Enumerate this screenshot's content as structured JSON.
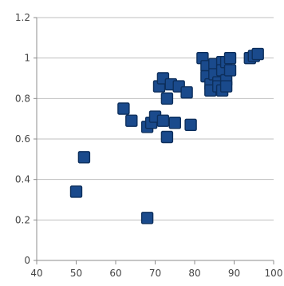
{
  "chart_data": {
    "type": "scatter",
    "title": "",
    "xlabel": "",
    "ylabel": "",
    "xlim": [
      40,
      100
    ],
    "ylim": [
      0,
      1.2
    ],
    "x_ticks": [
      "40",
      "50",
      "60",
      "70",
      "80",
      "90",
      "100"
    ],
    "y_ticks": [
      "0",
      "0.2",
      "0.4",
      "0.6",
      "0.8",
      "1",
      "1.2"
    ],
    "grid": {
      "horizontal": true,
      "vertical": false
    },
    "legend": "none",
    "marker_color": "#1a4a8c",
    "marker_shape": "square",
    "points": [
      [
        50,
        0.34
      ],
      [
        52,
        0.51
      ],
      [
        62,
        0.75
      ],
      [
        64,
        0.69
      ],
      [
        68,
        0.21
      ],
      [
        68,
        0.66
      ],
      [
        69,
        0.68
      ],
      [
        70,
        0.71
      ],
      [
        71,
        0.86
      ],
      [
        72,
        0.9
      ],
      [
        72,
        0.69
      ],
      [
        73,
        0.61
      ],
      [
        73,
        0.8
      ],
      [
        74,
        0.87
      ],
      [
        75,
        0.68
      ],
      [
        76,
        0.86
      ],
      [
        78,
        0.83
      ],
      [
        79,
        0.67
      ],
      [
        82,
        1.0
      ],
      [
        83,
        0.96
      ],
      [
        83,
        0.91
      ],
      [
        84,
        0.87
      ],
      [
        84,
        0.84
      ],
      [
        85,
        0.97
      ],
      [
        85,
        0.92
      ],
      [
        86,
        0.88
      ],
      [
        86,
        0.86
      ],
      [
        87,
        0.98
      ],
      [
        87,
        0.94
      ],
      [
        87,
        0.84
      ],
      [
        88,
        0.98
      ],
      [
        88,
        0.89
      ],
      [
        88,
        0.86
      ],
      [
        89,
        1.0
      ],
      [
        89,
        0.94
      ],
      [
        94,
        1.0
      ],
      [
        95,
        1.01
      ],
      [
        96,
        1.02
      ]
    ]
  }
}
